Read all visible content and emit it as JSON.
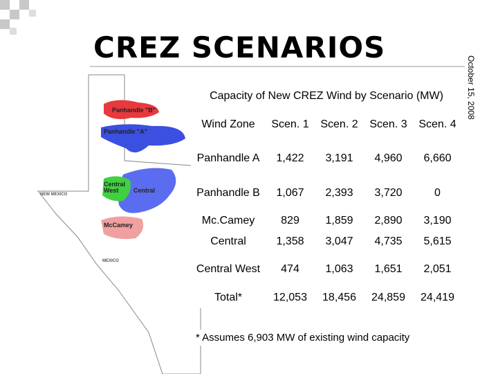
{
  "header": {
    "title": "CREZ SCENARIOS",
    "date": "October 15, 2008"
  },
  "map": {
    "labels": [
      "Panhandle \"B\"",
      "Panhandle \"A\"",
      "Central West",
      "Central",
      "McCamey",
      "NEW MEXICO",
      "MEXICO"
    ]
  },
  "table": {
    "caption": "Capacity of New CREZ Wind by Scenario (MW)",
    "columns": [
      "Wind Zone",
      "Scen. 1",
      "Scen. 2",
      "Scen. 3",
      "Scen. 4"
    ],
    "rows": [
      [
        "Panhandle A",
        "1,422",
        "3,191",
        "4,960",
        "6,660"
      ],
      [
        "Panhandle B",
        "1,067",
        "2,393",
        "3,720",
        "0"
      ],
      [
        "Mc.Camey",
        "829",
        "1,859",
        "2,890",
        "3,190"
      ],
      [
        "Central",
        "1,358",
        "3,047",
        "4,735",
        "5,615"
      ],
      [
        "Central West",
        "474",
        "1,063",
        "1,651",
        "2,051"
      ],
      [
        "Total*",
        "12,053",
        "18,456",
        "24,859",
        "24,419"
      ]
    ]
  },
  "footnote": "* Assumes 6,903 MW of existing wind capacity"
}
